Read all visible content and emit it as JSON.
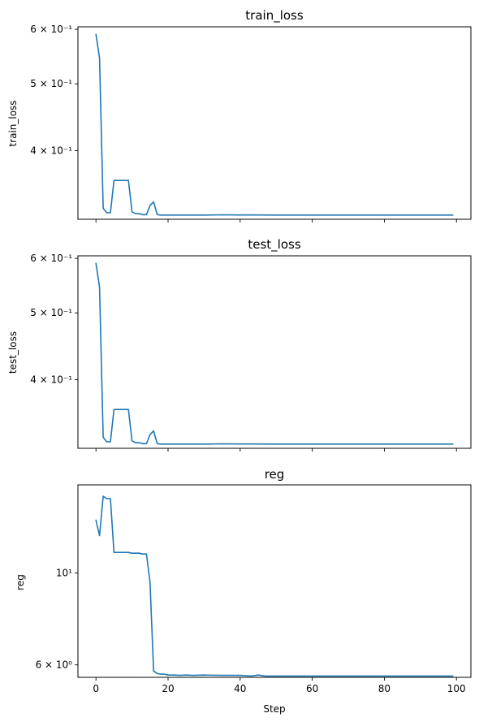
{
  "figure": {
    "xlabel": "Step",
    "line_color": "#1f77b4"
  },
  "chart_data": [
    {
      "type": "line",
      "title": "train_loss",
      "xlabel": "",
      "ylabel": "train_loss",
      "xlim": [
        -5,
        104
      ],
      "ylim": [
        0.318,
        0.605
      ],
      "yscale": "log",
      "ytick_labels": [
        "6 × 10⁻¹",
        "5 × 10⁻¹",
        "4 × 10⁻¹"
      ],
      "ytick_values": [
        0.6,
        0.5,
        0.4
      ],
      "x": [
        0,
        1,
        2,
        3,
        4,
        5,
        6,
        7,
        8,
        9,
        10,
        11,
        12,
        13,
        14,
        15,
        16,
        17,
        18,
        19,
        20,
        25,
        30,
        35,
        40,
        45,
        50,
        60,
        70,
        80,
        90,
        99
      ],
      "y": [
        0.59,
        0.545,
        0.33,
        0.325,
        0.325,
        0.362,
        0.362,
        0.362,
        0.362,
        0.362,
        0.326,
        0.324,
        0.324,
        0.323,
        0.323,
        0.333,
        0.337,
        0.323,
        0.3225,
        0.3225,
        0.3225,
        0.3225,
        0.3225,
        0.3228,
        0.3226,
        0.3226,
        0.3225,
        0.3225,
        0.3225,
        0.3225,
        0.3225,
        0.3225
      ]
    },
    {
      "type": "line",
      "title": "test_loss",
      "xlabel": "",
      "ylabel": "test_loss",
      "xlim": [
        -5,
        104
      ],
      "ylim": [
        0.318,
        0.605
      ],
      "yscale": "log",
      "ytick_labels": [
        "6 × 10⁻¹",
        "5 × 10⁻¹",
        "4 × 10⁻¹"
      ],
      "ytick_values": [
        0.6,
        0.5,
        0.4
      ],
      "x": [
        0,
        1,
        2,
        3,
        4,
        5,
        6,
        7,
        8,
        9,
        10,
        11,
        12,
        13,
        14,
        15,
        16,
        17,
        18,
        19,
        20,
        25,
        30,
        35,
        40,
        45,
        50,
        60,
        70,
        80,
        90,
        99
      ],
      "y": [
        0.59,
        0.545,
        0.33,
        0.325,
        0.325,
        0.362,
        0.362,
        0.362,
        0.362,
        0.362,
        0.326,
        0.324,
        0.324,
        0.323,
        0.323,
        0.333,
        0.337,
        0.323,
        0.3225,
        0.3225,
        0.3225,
        0.3225,
        0.3225,
        0.3228,
        0.3226,
        0.3226,
        0.3225,
        0.3225,
        0.3225,
        0.3225,
        0.3225,
        0.3225
      ]
    },
    {
      "type": "line",
      "title": "reg",
      "xlabel": "Step",
      "ylabel": "reg",
      "xlim": [
        -5,
        104
      ],
      "ylim": [
        5.6,
        16.3
      ],
      "yscale": "log",
      "ytick_labels": [
        "10¹",
        "6 × 10⁰"
      ],
      "ytick_values": [
        10,
        6
      ],
      "xtick_labels": [
        "0",
        "20",
        "40",
        "60",
        "80",
        "100"
      ],
      "xtick_values": [
        0,
        20,
        40,
        60,
        80,
        100
      ],
      "x": [
        0,
        1,
        2,
        3,
        4,
        5,
        6,
        7,
        8,
        9,
        10,
        11,
        12,
        13,
        14,
        15,
        16,
        17,
        18,
        19,
        20,
        21,
        22,
        23,
        25,
        27,
        30,
        35,
        40,
        43,
        45,
        47,
        50,
        60,
        70,
        80,
        90,
        99
      ],
      "y": [
        13.4,
        12.3,
        15.3,
        15.1,
        15.1,
        11.2,
        11.2,
        11.2,
        11.2,
        11.2,
        11.15,
        11.15,
        11.15,
        11.1,
        11.1,
        9.5,
        5.8,
        5.72,
        5.7,
        5.7,
        5.67,
        5.67,
        5.67,
        5.66,
        5.67,
        5.66,
        5.67,
        5.66,
        5.66,
        5.64,
        5.67,
        5.64,
        5.64,
        5.64,
        5.64,
        5.64,
        5.64,
        5.64
      ]
    }
  ]
}
